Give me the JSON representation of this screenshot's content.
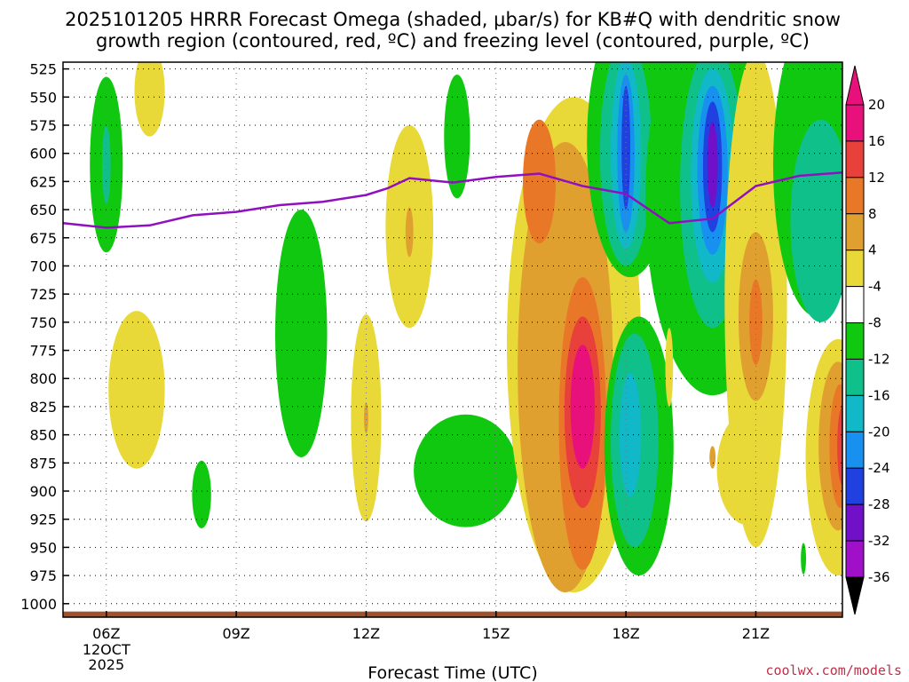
{
  "chart_data": {
    "type": "contour-time-height",
    "title_lines": [
      "2025101205 HRRR Forecast Omega (shaded, μbar/s) for KB#Q with dendritic snow",
      "growth region (contoured, red, ºC) and freezing level (contoured, purple, ºC)"
    ],
    "xlabel": "Forecast Time (UTC)",
    "credit": "coolwx.com/models",
    "x_ticks": [
      {
        "hour": 6,
        "label": "06Z",
        "sub": [
          "12OCT",
          "2025"
        ]
      },
      {
        "hour": 9,
        "label": "09Z"
      },
      {
        "hour": 12,
        "label": "12Z"
      },
      {
        "hour": 15,
        "label": "15Z"
      },
      {
        "hour": 18,
        "label": "18Z"
      },
      {
        "hour": 21,
        "label": "21Z"
      }
    ],
    "xlim": [
      5,
      23
    ],
    "y_ticks": [
      525,
      550,
      575,
      600,
      625,
      650,
      675,
      700,
      725,
      750,
      775,
      800,
      825,
      850,
      875,
      900,
      925,
      950,
      975,
      1000
    ],
    "ylim": [
      1012,
      519
    ],
    "colorbar": {
      "labels": [
        "20",
        "16",
        "12",
        "8",
        "4",
        "-4",
        "-8",
        "-12",
        "-16",
        "-20",
        "-24",
        "-28",
        "-32",
        "-36"
      ],
      "levels": [
        {
          "lo": 20,
          "hi": 24,
          "color": "#e8107a"
        },
        {
          "lo": 16,
          "hi": 20,
          "color": "#e8403a"
        },
        {
          "lo": 12,
          "hi": 16,
          "color": "#e87828"
        },
        {
          "lo": 8,
          "hi": 12,
          "color": "#e0a030"
        },
        {
          "lo": 4,
          "hi": 8,
          "color": "#e8d838"
        },
        {
          "lo": -4,
          "hi": 4,
          "color": "#ffffff"
        },
        {
          "lo": -8,
          "hi": -4,
          "color": "#10c810"
        },
        {
          "lo": -12,
          "hi": -8,
          "color": "#10c08a"
        },
        {
          "lo": -16,
          "hi": -12,
          "color": "#10b8c8"
        },
        {
          "lo": -20,
          "hi": -16,
          "color": "#1890f0"
        },
        {
          "lo": -24,
          "hi": -20,
          "color": "#2040e0"
        },
        {
          "lo": -28,
          "hi": -24,
          "color": "#7010c8"
        },
        {
          "lo": -32,
          "hi": -28,
          "color": "#a010c8"
        },
        {
          "lo": -36,
          "hi": -32,
          "color": "#a8a8a8"
        }
      ],
      "over_color": "#e8107a",
      "under_color": "#000000"
    },
    "freezing_level": {
      "color": "#9010c0",
      "points": [
        [
          5,
          662
        ],
        [
          6,
          666
        ],
        [
          7,
          664
        ],
        [
          8,
          655
        ],
        [
          9,
          652
        ],
        [
          10,
          646
        ],
        [
          11,
          643
        ],
        [
          12,
          637
        ],
        [
          12.5,
          631
        ],
        [
          13,
          622
        ],
        [
          14,
          626
        ],
        [
          15,
          621
        ],
        [
          16,
          618
        ],
        [
          17,
          629
        ],
        [
          18,
          636
        ],
        [
          19,
          662
        ],
        [
          20,
          658
        ],
        [
          21,
          629
        ],
        [
          22,
          620
        ],
        [
          23,
          617
        ]
      ]
    },
    "terrain": {
      "color": "#a0522d",
      "top_hpa": 1007
    },
    "shaded_regions": [
      {
        "level": -8,
        "cx": 6.0,
        "cy": 610,
        "rx": 0.38,
        "ry": 78
      },
      {
        "level": -12,
        "cx": 6.0,
        "cy": 610,
        "rx": 0.1,
        "ry": 35
      },
      {
        "level": 4,
        "cx": 7.0,
        "cy": 545,
        "rx": 0.35,
        "ry": 40
      },
      {
        "level": -8,
        "cx": 14.1,
        "cy": 585,
        "rx": 0.3,
        "ry": 55
      },
      {
        "level": 4,
        "cx": 13.0,
        "cy": 665,
        "rx": 0.55,
        "ry": 90
      },
      {
        "level": 8,
        "cx": 13.0,
        "cy": 670,
        "rx": 0.09,
        "ry": 22
      },
      {
        "level": -8,
        "cx": 10.5,
        "cy": 760,
        "rx": 0.6,
        "ry": 110
      },
      {
        "level": 4,
        "cx": 6.7,
        "cy": 810,
        "rx": 0.65,
        "ry": 70
      },
      {
        "level": 4,
        "cx": 12.0,
        "cy": 835,
        "rx": 0.35,
        "ry": 92
      },
      {
        "level": 8,
        "cx": 12.0,
        "cy": 835,
        "rx": 0.05,
        "ry": 14
      },
      {
        "level": -8,
        "cx": 8.2,
        "cy": 903,
        "rx": 0.22,
        "ry": 30
      },
      {
        "level": -8,
        "cx": 14.3,
        "cy": 882,
        "rx": 1.2,
        "ry": 50
      },
      {
        "level": 4,
        "cx": 16.8,
        "cy": 770,
        "rx": 1.55,
        "ry": 220
      },
      {
        "level": 8,
        "cx": 16.6,
        "cy": 790,
        "rx": 1.1,
        "ry": 200
      },
      {
        "level": 12,
        "cx": 16.0,
        "cy": 625,
        "rx": 0.38,
        "ry": 55
      },
      {
        "level": 12,
        "cx": 17.0,
        "cy": 840,
        "rx": 0.55,
        "ry": 130
      },
      {
        "level": 16,
        "cx": 17.0,
        "cy": 830,
        "rx": 0.42,
        "ry": 85
      },
      {
        "level": 20,
        "cx": 17.0,
        "cy": 825,
        "rx": 0.28,
        "ry": 55
      },
      {
        "level": -8,
        "cx": 18.1,
        "cy": 590,
        "rx": 1.0,
        "ry": 120
      },
      {
        "level": -12,
        "cx": 18.0,
        "cy": 600,
        "rx": 0.6,
        "ry": 100
      },
      {
        "level": -16,
        "cx": 18.0,
        "cy": 600,
        "rx": 0.35,
        "ry": 85
      },
      {
        "level": -20,
        "cx": 18.0,
        "cy": 600,
        "rx": 0.2,
        "ry": 70
      },
      {
        "level": -24,
        "cx": 18.0,
        "cy": 595,
        "rx": 0.1,
        "ry": 55
      },
      {
        "level": -8,
        "cx": 20.0,
        "cy": 640,
        "rx": 1.55,
        "ry": 175
      },
      {
        "level": -12,
        "cx": 20.0,
        "cy": 630,
        "rx": 0.75,
        "ry": 125
      },
      {
        "level": -16,
        "cx": 20.0,
        "cy": 620,
        "rx": 0.5,
        "ry": 95
      },
      {
        "level": -20,
        "cx": 20.0,
        "cy": 615,
        "rx": 0.35,
        "ry": 75
      },
      {
        "level": -24,
        "cx": 20.0,
        "cy": 612,
        "rx": 0.22,
        "ry": 58
      },
      {
        "level": -28,
        "cx": 20.0,
        "cy": 610,
        "rx": 0.12,
        "ry": 38
      },
      {
        "level": -8,
        "cx": 18.3,
        "cy": 860,
        "rx": 0.8,
        "ry": 115
      },
      {
        "level": -12,
        "cx": 18.2,
        "cy": 855,
        "rx": 0.55,
        "ry": 95
      },
      {
        "level": -16,
        "cx": 18.1,
        "cy": 850,
        "rx": 0.25,
        "ry": 55
      },
      {
        "level": 4,
        "cx": 21.0,
        "cy": 730,
        "rx": 0.72,
        "ry": 220
      },
      {
        "level": 8,
        "cx": 21.0,
        "cy": 745,
        "rx": 0.4,
        "ry": 75
      },
      {
        "level": 12,
        "cx": 21.0,
        "cy": 750,
        "rx": 0.15,
        "ry": 38
      },
      {
        "level": 4,
        "cx": 20.8,
        "cy": 880,
        "rx": 0.7,
        "ry": 50
      },
      {
        "level": 4,
        "cx": 19.0,
        "cy": 790,
        "rx": 0.09,
        "ry": 35
      },
      {
        "level": 8,
        "cx": 20.0,
        "cy": 870,
        "rx": 0.07,
        "ry": 10
      },
      {
        "level": -8,
        "cx": 22.4,
        "cy": 610,
        "rx": 1.0,
        "ry": 135
      },
      {
        "level": -12,
        "cx": 22.5,
        "cy": 660,
        "rx": 0.7,
        "ry": 90
      },
      {
        "level": -8,
        "cx": 22.1,
        "cy": 960,
        "rx": 0.06,
        "ry": 14
      },
      {
        "level": 4,
        "cx": 22.9,
        "cy": 870,
        "rx": 0.75,
        "ry": 105
      },
      {
        "level": 8,
        "cx": 22.9,
        "cy": 860,
        "rx": 0.45,
        "ry": 75
      },
      {
        "level": 12,
        "cx": 22.95,
        "cy": 860,
        "rx": 0.25,
        "ry": 55
      },
      {
        "level": 16,
        "cx": 23.0,
        "cy": 860,
        "rx": 0.12,
        "ry": 35
      }
    ]
  }
}
